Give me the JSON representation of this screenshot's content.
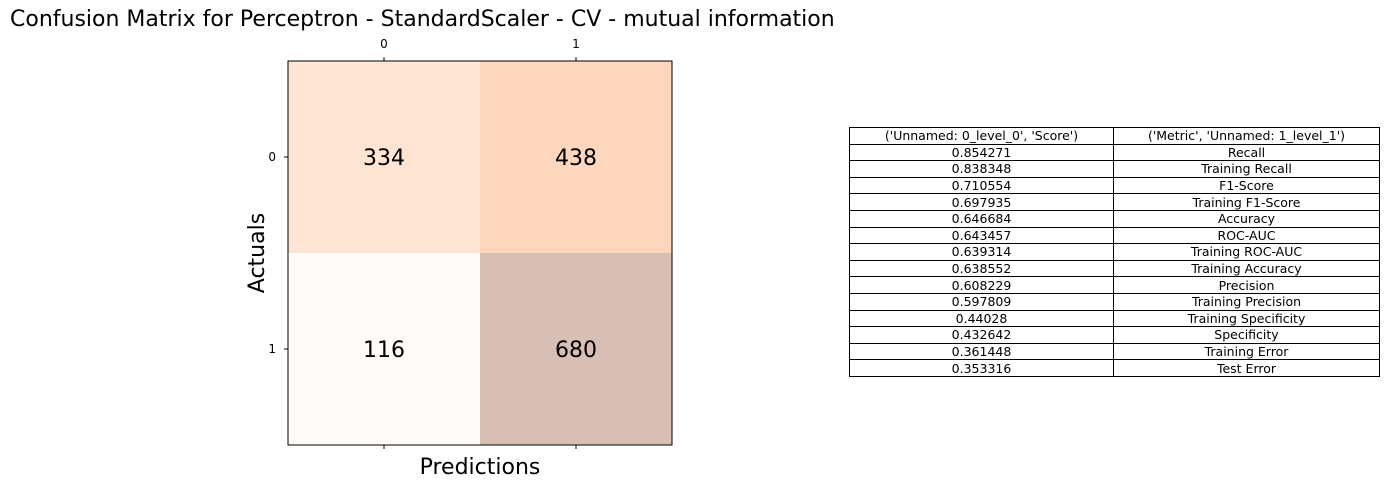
{
  "chart_data": [
    {
      "type": "heatmap",
      "title": "Confusion Matrix for Perceptron - StandardScaler - CV - mutual information",
      "xlabel": "Predictions",
      "ylabel": "Actuals",
      "x_tick_labels": [
        "0",
        "1"
      ],
      "y_tick_labels": [
        "0",
        "1"
      ],
      "x_ticks_position": "top",
      "values": [
        [
          334,
          438
        ],
        [
          116,
          680
        ]
      ],
      "colors": [
        [
          "#fee4d3",
          "#fcd7bd"
        ],
        [
          "#fffbf8",
          "#d8bfb6"
        ]
      ]
    },
    {
      "type": "table",
      "columns": [
        "('Unnamed: 0_level_0', 'Score')",
        "('Metric', 'Unnamed: 1_level_1')"
      ],
      "rows": [
        [
          "0.854271",
          "Recall"
        ],
        [
          "0.838348",
          "Training Recall"
        ],
        [
          "0.710554",
          "F1-Score"
        ],
        [
          "0.697935",
          "Training F1-Score"
        ],
        [
          "0.646684",
          "Accuracy"
        ],
        [
          "0.643457",
          "ROC-AUC"
        ],
        [
          "0.639314",
          "Training ROC-AUC"
        ],
        [
          "0.638552",
          "Training Accuracy"
        ],
        [
          "0.608229",
          "Precision"
        ],
        [
          "0.597809",
          "Training Precision"
        ],
        [
          "0.44028",
          "Training Specificity"
        ],
        [
          "0.432642",
          "Specificity"
        ],
        [
          "0.361448",
          "Training Error"
        ],
        [
          "0.353316",
          "Test Error"
        ]
      ]
    }
  ]
}
